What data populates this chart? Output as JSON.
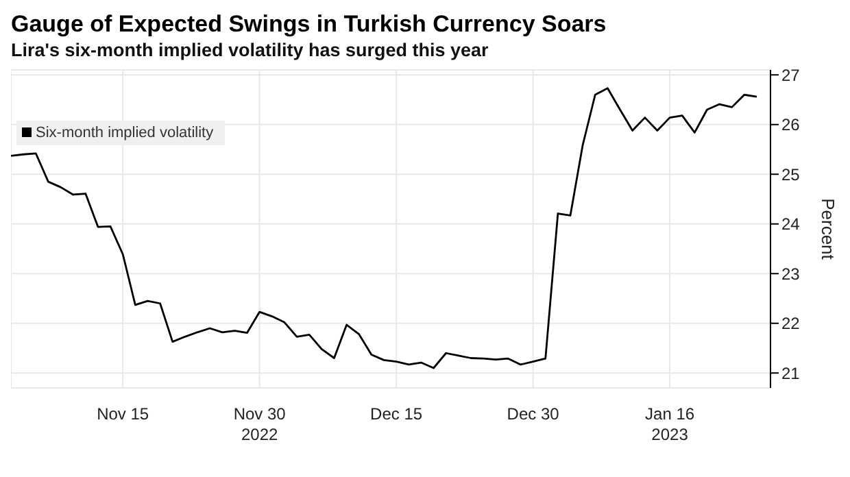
{
  "chart_data": {
    "type": "line",
    "title": "Gauge of Expected Swings in Turkish Currency Soars",
    "subtitle": "Lira's six-month implied volatility has surged this year",
    "ylabel": "Percent",
    "categories": [
      null,
      null,
      null,
      null,
      null,
      null,
      null,
      null,
      null,
      "Nov 15",
      null,
      null,
      null,
      null,
      null,
      null,
      null,
      null,
      null,
      null,
      "Nov 30\n2022",
      null,
      null,
      null,
      null,
      null,
      null,
      null,
      null,
      null,
      null,
      "Dec 15",
      null,
      null,
      null,
      null,
      null,
      null,
      null,
      null,
      null,
      null,
      "Dec 30",
      null,
      null,
      null,
      null,
      null,
      null,
      null,
      null,
      null,
      null,
      "Jan 16\n2023",
      null,
      null,
      null,
      null,
      null,
      null,
      null
    ],
    "series": [
      {
        "name": "Six-month implied volatility",
        "color": "#000000",
        "values": [
          25.37,
          25.4,
          25.42,
          24.85,
          24.74,
          24.59,
          24.61,
          23.94,
          23.95,
          23.39,
          22.37,
          22.45,
          22.4,
          21.63,
          21.73,
          21.82,
          21.9,
          21.82,
          21.85,
          21.81,
          22.23,
          22.14,
          22.02,
          21.73,
          21.77,
          21.48,
          21.3,
          21.97,
          21.78,
          21.37,
          21.26,
          21.23,
          21.17,
          21.21,
          21.1,
          21.4,
          21.35,
          21.3,
          21.29,
          21.27,
          21.29,
          21.17,
          21.23,
          21.29,
          24.21,
          24.17,
          25.59,
          26.6,
          26.73,
          26.3,
          25.88,
          26.14,
          25.88,
          26.14,
          26.18,
          25.84,
          26.3,
          26.41,
          26.35,
          26.6,
          26.56
        ]
      }
    ],
    "ylim": [
      20.7,
      27.1
    ],
    "yticks": [
      21,
      22,
      23,
      24,
      25,
      26,
      27
    ],
    "grid": true,
    "legend": "top left",
    "marker": "none",
    "line_style": "solid"
  }
}
